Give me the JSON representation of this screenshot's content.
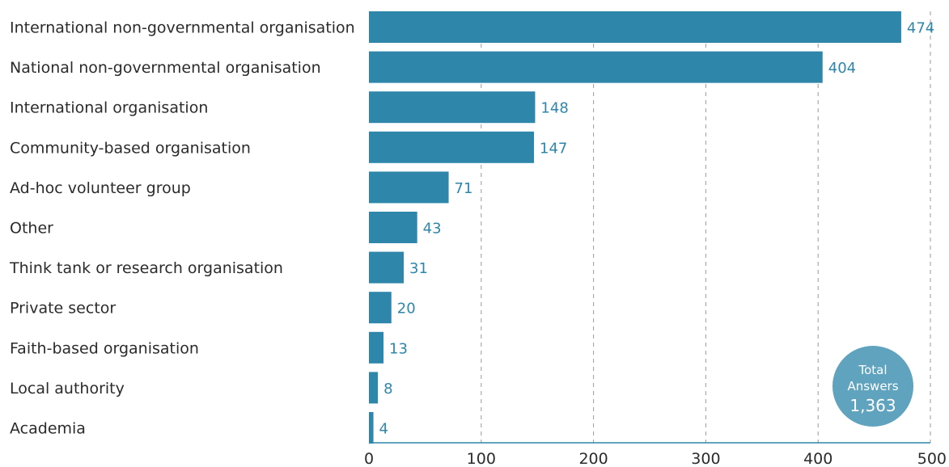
{
  "chart_data": {
    "type": "bar",
    "orientation": "horizontal",
    "categories": [
      "International non-governmental organisation",
      "National non-governmental organisation",
      "International organisation",
      "Community-based organisation",
      "Ad-hoc volunteer group",
      "Other",
      "Think tank or research organisation",
      "Private sector",
      "Faith-based organisation",
      "Local authority",
      "Academia"
    ],
    "values": [
      474,
      404,
      148,
      147,
      71,
      43,
      31,
      20,
      13,
      8,
      4
    ],
    "xlim": [
      0,
      500
    ],
    "x_ticks": [
      0,
      100,
      200,
      300,
      400,
      500
    ],
    "grid": "vertical dashed",
    "title": "",
    "xlabel": "",
    "ylabel": ""
  },
  "badge": {
    "line1": "Total",
    "line2": "Answers",
    "value": "1,363"
  },
  "colors": {
    "bar": "#2e86ab",
    "value_text": "#2e86ab",
    "badge": "#5fa3be",
    "grid": "#9a9a9a",
    "axis": "#2e86ab"
  }
}
